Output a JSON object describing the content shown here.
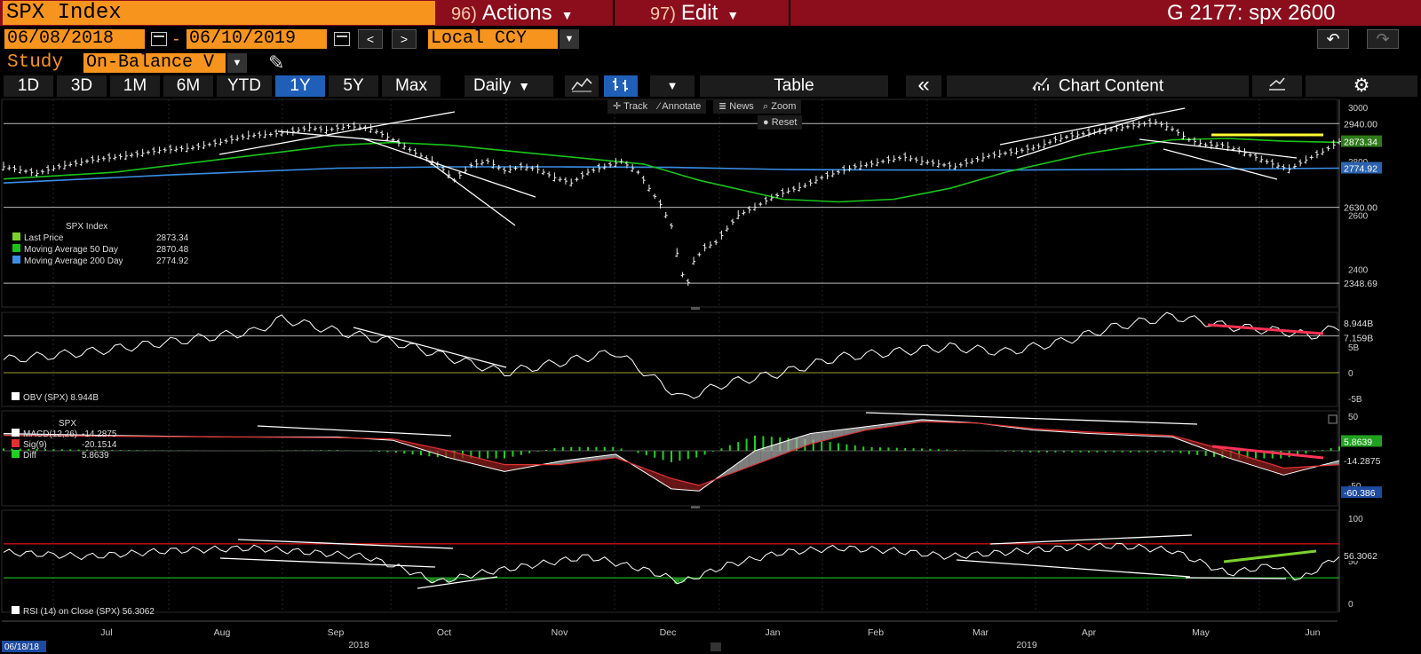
{
  "header": {
    "security_title": "SPX Index",
    "actions_num": "96)",
    "actions_label": "Actions",
    "edit_num": "97)",
    "edit_label": "Edit",
    "page_code": "G 2177: spx 2600"
  },
  "date_range": {
    "start": "06/08/2018",
    "dash": "-",
    "end": "06/10/2019",
    "currency": "Local CCY"
  },
  "study": {
    "label": "Study",
    "value": "On-Balance V"
  },
  "toolbar": {
    "periods": [
      "1D",
      "3D",
      "1M",
      "6M",
      "YTD",
      "1Y",
      "5Y",
      "Max"
    ],
    "active_period": "1Y",
    "frequency": "Daily",
    "table_label": "Table",
    "chart_content_label": "Chart Content"
  },
  "overlay_buttons": {
    "track": "Track",
    "annotate": "Annotate",
    "news": "News",
    "zoom": "Zoom",
    "reset": "Reset"
  },
  "colors": {
    "price": "#ffffff",
    "ma50": "#19c419",
    "ma200": "#3a8ee6",
    "highlight": "#ffff33",
    "divergence": "#ff3355",
    "rsi_trend": "#7bd12c",
    "overbought": "#cc1111",
    "oversold": "#19a019",
    "title_bar": "#8c0e1c",
    "accent": "#f7941d"
  },
  "chart_data": [
    {
      "type": "line",
      "panel": "price",
      "legend_title": "SPX Index",
      "legend": [
        {
          "name": "Last Price",
          "value": "2873.34",
          "color": "#7bd12c"
        },
        {
          "name": "Moving Average 50 Day",
          "value": "2870.48",
          "color": "#19c419"
        },
        {
          "name": "Moving Average 200 Day",
          "value": "2774.92",
          "color": "#3a8ee6"
        }
      ],
      "y_ticks": [
        "3000",
        "2800",
        "2600",
        "2400"
      ],
      "ylim": [
        2300,
        3010
      ],
      "horizontal_lines": [
        2940,
        2630,
        2348.69
      ],
      "value_labels": [
        "2940.00",
        "2873.34",
        "2774.92",
        "2630.00",
        "2348.69"
      ],
      "series": [
        {
          "name": "Last Price",
          "points": [
            [
              0,
              2780
            ],
            [
              6,
              2755
            ],
            [
              10,
              2780
            ],
            [
              16,
              2805
            ],
            [
              22,
              2820
            ],
            [
              28,
              2840
            ],
            [
              34,
              2850
            ],
            [
              40,
              2875
            ],
            [
              44,
              2895
            ],
            [
              48,
              2900
            ],
            [
              52,
              2910
            ],
            [
              55,
              2925
            ],
            [
              58,
              2915
            ],
            [
              62,
              2930
            ],
            [
              66,
              2920
            ],
            [
              70,
              2880
            ],
            [
              74,
              2830
            ],
            [
              78,
              2790
            ],
            [
              81,
              2730
            ],
            [
              84,
              2785
            ],
            [
              87,
              2800
            ],
            [
              90,
              2765
            ],
            [
              93,
              2780
            ],
            [
              96,
              2770
            ],
            [
              99,
              2740
            ],
            [
              102,
              2720
            ],
            [
              105,
              2760
            ],
            [
              108,
              2780
            ],
            [
              111,
              2800
            ],
            [
              114,
              2760
            ],
            [
              116,
              2700
            ],
            [
              118,
              2640
            ],
            [
              120,
              2560
            ],
            [
              121,
              2460
            ],
            [
              122,
              2380
            ],
            [
              123,
              2351
            ],
            [
              124,
              2430
            ],
            [
              126,
              2480
            ],
            [
              128,
              2500
            ],
            [
              130,
              2550
            ],
            [
              132,
              2600
            ],
            [
              135,
              2630
            ],
            [
              138,
              2665
            ],
            [
              141,
              2690
            ],
            [
              144,
              2710
            ],
            [
              147,
              2740
            ],
            [
              150,
              2760
            ],
            [
              153,
              2780
            ],
            [
              156,
              2790
            ],
            [
              159,
              2805
            ],
            [
              162,
              2815
            ],
            [
              165,
              2800
            ],
            [
              168,
              2790
            ],
            [
              171,
              2780
            ],
            [
              174,
              2800
            ],
            [
              177,
              2820
            ],
            [
              180,
              2830
            ],
            [
              183,
              2840
            ],
            [
              186,
              2855
            ],
            [
              189,
              2880
            ],
            [
              192,
              2895
            ],
            [
              195,
              2905
            ],
            [
              198,
              2915
            ],
            [
              201,
              2925
            ],
            [
              204,
              2935
            ],
            [
              207,
              2945
            ],
            [
              210,
              2920
            ],
            [
              213,
              2880
            ],
            [
              216,
              2860
            ],
            [
              219,
              2860
            ],
            [
              222,
              2840
            ],
            [
              225,
              2815
            ],
            [
              228,
              2790
            ],
            [
              231,
              2770
            ],
            [
              234,
              2805
            ],
            [
              237,
              2835
            ],
            [
              240,
              2873.34
            ]
          ]
        },
        {
          "name": "Moving Average 50 Day",
          "points": [
            [
              0,
              2735
            ],
            [
              20,
              2760
            ],
            [
              40,
              2810
            ],
            [
              60,
              2860
            ],
            [
              70,
              2870
            ],
            [
              80,
              2860
            ],
            [
              100,
              2820
            ],
            [
              115,
              2790
            ],
            [
              125,
              2730
            ],
            [
              140,
              2660
            ],
            [
              150,
              2650
            ],
            [
              160,
              2660
            ],
            [
              170,
              2700
            ],
            [
              180,
              2760
            ],
            [
              195,
              2830
            ],
            [
              210,
              2880
            ],
            [
              220,
              2885
            ],
            [
              230,
              2875
            ],
            [
              240,
              2870.48
            ]
          ]
        },
        {
          "name": "Moving Average 200 Day",
          "points": [
            [
              0,
              2720
            ],
            [
              30,
              2750
            ],
            [
              60,
              2775
            ],
            [
              80,
              2780
            ],
            [
              100,
              2780
            ],
            [
              120,
              2778
            ],
            [
              140,
              2770
            ],
            [
              160,
              2768
            ],
            [
              180,
              2768
            ],
            [
              200,
              2770
            ],
            [
              220,
              2772
            ],
            [
              240,
              2774.92
            ]
          ]
        }
      ],
      "x_labels": [
        "Jul",
        "Aug",
        "Sep",
        "Oct",
        "Nov",
        "Dec",
        "Jan",
        "Feb",
        "Mar",
        "Apr",
        "May",
        "Jun"
      ],
      "year_labels": [
        "2018",
        "2019"
      ],
      "start_date_label": "06/18/18"
    },
    {
      "type": "line",
      "panel": "obv",
      "legend": [
        {
          "name": "OBV (SPX)",
          "value": "8.944B"
        }
      ],
      "y_ticks": [
        "5B",
        "0",
        "-5B"
      ],
      "value_labels": [
        "8.944B",
        "7.159B"
      ],
      "series": [
        {
          "name": "OBV (SPX)",
          "points": [
            [
              0,
              2.5
            ],
            [
              15,
              4
            ],
            [
              30,
              6
            ],
            [
              45,
              8
            ],
            [
              50,
              10.5
            ],
            [
              60,
              8
            ],
            [
              70,
              6
            ],
            [
              80,
              3
            ],
            [
              90,
              0
            ],
            [
              100,
              2
            ],
            [
              110,
              4
            ],
            [
              118,
              -2
            ],
            [
              122,
              -5
            ],
            [
              130,
              -2
            ],
            [
              140,
              0
            ],
            [
              150,
              3
            ],
            [
              160,
              4
            ],
            [
              170,
              5
            ],
            [
              180,
              4
            ],
            [
              190,
              6
            ],
            [
              200,
              9
            ],
            [
              210,
              11
            ],
            [
              220,
              9
            ],
            [
              230,
              8
            ],
            [
              235,
              7.159
            ],
            [
              240,
              8.944
            ]
          ]
        }
      ]
    },
    {
      "type": "line",
      "panel": "macd",
      "title": "SPX",
      "legend": [
        {
          "name": "MACD(12,26)",
          "value": "-14.2875"
        },
        {
          "name": "Sig(9)",
          "value": "-20.1514"
        },
        {
          "name": "Diff",
          "value": "5.8639"
        }
      ],
      "y_ticks": [
        "50",
        "-50"
      ],
      "value_labels": [
        "5.8639",
        "-14.2875",
        "-60.386"
      ],
      "series": [
        {
          "name": "MACD(12,26)",
          "points": [
            [
              0,
              25
            ],
            [
              20,
              22
            ],
            [
              40,
              20
            ],
            [
              60,
              20
            ],
            [
              70,
              15
            ],
            [
              80,
              -10
            ],
            [
              90,
              -30
            ],
            [
              100,
              -15
            ],
            [
              110,
              -5
            ],
            [
              120,
              -55
            ],
            [
              125,
              -58
            ],
            [
              135,
              0
            ],
            [
              145,
              25
            ],
            [
              155,
              35
            ],
            [
              165,
              45
            ],
            [
              175,
              40
            ],
            [
              185,
              30
            ],
            [
              195,
              25
            ],
            [
              210,
              20
            ],
            [
              220,
              -10
            ],
            [
              230,
              -35
            ],
            [
              240,
              -14.2875
            ]
          ]
        },
        {
          "name": "Sig(9)",
          "points": [
            [
              0,
              22
            ],
            [
              20,
              21
            ],
            [
              40,
              20
            ],
            [
              60,
              19
            ],
            [
              70,
              17
            ],
            [
              80,
              0
            ],
            [
              90,
              -20
            ],
            [
              100,
              -20
            ],
            [
              110,
              -10
            ],
            [
              120,
              -40
            ],
            [
              125,
              -50
            ],
            [
              135,
              -20
            ],
            [
              145,
              10
            ],
            [
              155,
              30
            ],
            [
              165,
              42
            ],
            [
              175,
              40
            ],
            [
              185,
              32
            ],
            [
              195,
              27
            ],
            [
              210,
              22
            ],
            [
              220,
              0
            ],
            [
              230,
              -25
            ],
            [
              240,
              -20.1514
            ]
          ]
        },
        {
          "name": "Diff",
          "values_summary": "histogram of MACD minus signal",
          "last": 5.8639
        }
      ]
    },
    {
      "type": "line",
      "panel": "rsi",
      "legend": [
        {
          "name": "RSI (14) on Close (SPX)",
          "value": "56.3062"
        }
      ],
      "y_ticks": [
        "100",
        "50",
        "0"
      ],
      "overbought": 70,
      "oversold": 30,
      "value_labels": [
        "56.3062"
      ],
      "series": [
        {
          "name": "RSI (14) on Close (SPX)",
          "points": [
            [
              0,
              60
            ],
            [
              15,
              55
            ],
            [
              30,
              62
            ],
            [
              45,
              65
            ],
            [
              55,
              60
            ],
            [
              65,
              55
            ],
            [
              72,
              40
            ],
            [
              78,
              25
            ],
            [
              85,
              35
            ],
            [
              95,
              45
            ],
            [
              105,
              55
            ],
            [
              115,
              40
            ],
            [
              122,
              25
            ],
            [
              130,
              45
            ],
            [
              140,
              60
            ],
            [
              150,
              65
            ],
            [
              160,
              62
            ],
            [
              170,
              55
            ],
            [
              180,
              60
            ],
            [
              190,
              65
            ],
            [
              200,
              68
            ],
            [
              210,
              62
            ],
            [
              220,
              35
            ],
            [
              228,
              45
            ],
            [
              233,
              28
            ],
            [
              240,
              56.3062
            ]
          ]
        }
      ]
    }
  ]
}
